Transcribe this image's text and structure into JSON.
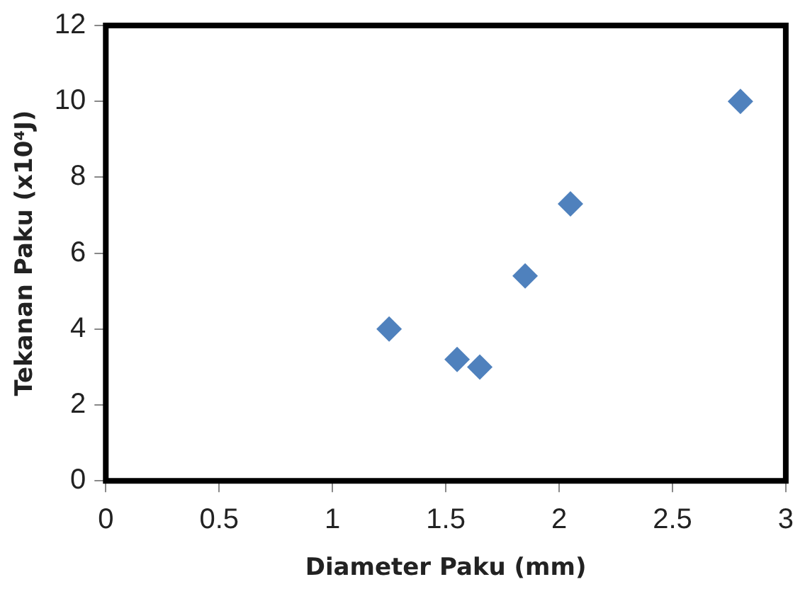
{
  "chart_data": {
    "type": "scatter",
    "xlabel": "Diameter Paku (mm)",
    "ylabel": "Tekanan Paku (x10⁴J)",
    "x": [
      1.25,
      1.55,
      1.65,
      1.85,
      2.05,
      2.8
    ],
    "series": [
      {
        "color": "#4f81bd",
        "values": [
          4.0,
          3.2,
          3.0,
          5.4,
          7.3,
          10.0
        ]
      }
    ],
    "xlim": [
      0,
      3
    ],
    "xticks": [
      0,
      0.5,
      1,
      1.5,
      2,
      2.5,
      3
    ],
    "ylim": [
      0,
      12
    ],
    "yticks": [
      0,
      2,
      4,
      6,
      8,
      10,
      12
    ],
    "marker": "diamond",
    "grid": false,
    "legend": false
  }
}
